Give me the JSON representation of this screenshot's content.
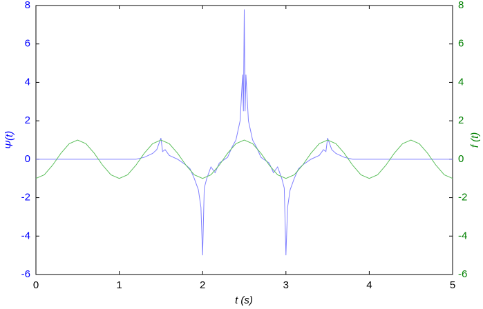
{
  "chart_data": {
    "type": "line",
    "xlabel": "t (s)",
    "ylabel": "Ψ(t)",
    "y2label": "f (t)",
    "ylabel_color": "#0000ff",
    "y2label_color": "#008000",
    "xlim": [
      0,
      5
    ],
    "xticks": [
      0,
      1,
      2,
      3,
      4,
      5
    ],
    "ylim": [
      -6,
      8
    ],
    "yticks": [
      -6,
      -4,
      -2,
      0,
      2,
      4,
      6,
      8
    ],
    "y2lim": [
      -6,
      8
    ],
    "y2ticks": [
      -6,
      -4,
      -2,
      0,
      2,
      4,
      6,
      8
    ],
    "series": [
      {
        "color": "#8080ff",
        "axis": "y",
        "x": [
          0,
          1.2,
          1.3,
          1.4,
          1.45,
          1.5,
          1.52,
          1.55,
          1.6,
          1.7,
          1.8,
          1.85,
          1.9,
          1.95,
          1.98,
          2.0,
          2.02,
          2.05,
          2.1,
          2.15,
          2.2,
          2.3,
          2.35,
          2.4,
          2.45,
          2.48,
          2.49,
          2.5,
          2.51,
          2.52,
          2.55,
          2.6,
          2.65,
          2.7,
          2.8,
          2.85,
          2.9,
          2.95,
          2.98,
          3.0,
          3.02,
          3.05,
          3.1,
          3.15,
          3.2,
          3.3,
          3.4,
          3.45,
          3.48,
          3.5,
          3.55,
          3.6,
          3.7,
          3.8,
          5
        ],
        "values": [
          0,
          0,
          0.1,
          0.3,
          0.5,
          1.1,
          0.4,
          0.5,
          0.2,
          0,
          -0.3,
          -0.5,
          -1.0,
          -1.6,
          -2.5,
          -5.0,
          -1.5,
          -1.0,
          -0.4,
          -0.7,
          -0.2,
          0.1,
          0.6,
          1.0,
          2.0,
          4.4,
          2.5,
          7.8,
          2.5,
          4.4,
          2.0,
          1.0,
          0.6,
          0.1,
          -0.2,
          -0.7,
          -0.4,
          -1.0,
          -1.5,
          -5.0,
          -2.5,
          -1.6,
          -1.0,
          -0.5,
          -0.3,
          0,
          0.2,
          0.5,
          0.4,
          1.1,
          0.5,
          0.3,
          0.1,
          0,
          0
        ]
      },
      {
        "color": "#5cbf5c",
        "axis": "y2",
        "x": [
          0,
          0.1,
          0.2,
          0.3,
          0.4,
          0.5,
          0.6,
          0.7,
          0.8,
          0.9,
          1,
          1.1,
          1.2,
          1.3,
          1.4,
          1.5,
          1.6,
          1.7,
          1.8,
          1.9,
          2,
          2.1,
          2.2,
          2.3,
          2.4,
          2.5,
          2.6,
          2.7,
          2.8,
          2.9,
          3,
          3.1,
          3.2,
          3.3,
          3.4,
          3.5,
          3.6,
          3.7,
          3.8,
          3.9,
          4,
          4.1,
          4.2,
          4.3,
          4.4,
          4.5,
          4.6,
          4.7,
          4.8,
          4.9,
          5
        ],
        "values": [
          -1,
          -0.81,
          -0.31,
          0.31,
          0.81,
          1,
          0.81,
          0.31,
          -0.31,
          -0.81,
          -1,
          -0.81,
          -0.31,
          0.31,
          0.81,
          1,
          0.81,
          0.31,
          -0.31,
          -0.81,
          -1,
          -0.81,
          -0.31,
          0.31,
          0.81,
          1,
          0.81,
          0.31,
          -0.31,
          -0.81,
          -1,
          -0.81,
          -0.31,
          0.31,
          0.81,
          1,
          0.81,
          0.31,
          -0.31,
          -0.81,
          -1,
          -0.81,
          -0.31,
          0.31,
          0.81,
          1,
          0.81,
          0.31,
          -0.31,
          -0.81,
          -1
        ]
      }
    ]
  }
}
